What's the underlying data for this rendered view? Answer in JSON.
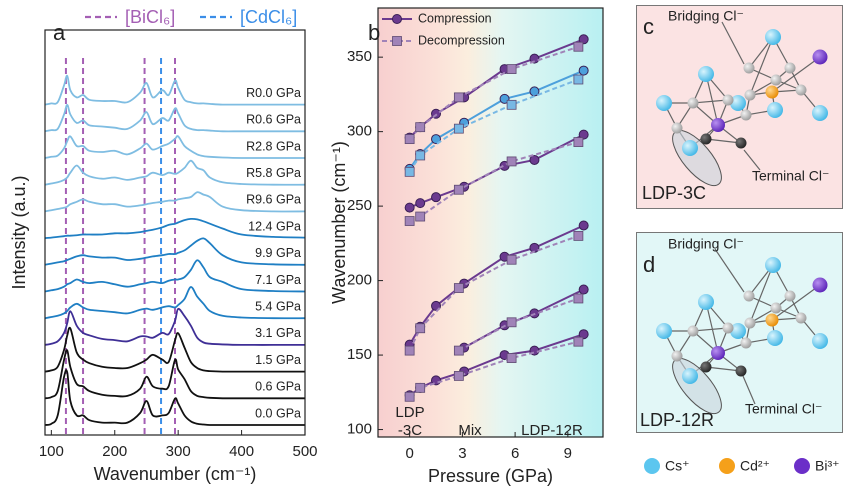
{
  "chart_data": [
    {
      "type": "waterfall",
      "panel": "a",
      "xlabel": "Wavenumber (cm⁻¹)",
      "ylabel": "Intensity (a.u.)",
      "xlim": [
        90,
        500
      ],
      "xticks": [
        100,
        200,
        300,
        400,
        500
      ],
      "reference_lines": [
        {
          "name": "[BiCl₆]",
          "color": "#a45fb4",
          "positions": [
            123,
            150,
            247,
            295
          ]
        },
        {
          "name": "[CdCl₆]",
          "color": "#3b8ee8",
          "positions": [
            273
          ]
        }
      ],
      "x": [
        90,
        100,
        110,
        120,
        125,
        130,
        140,
        150,
        160,
        180,
        200,
        220,
        240,
        250,
        260,
        275,
        285,
        295,
        300,
        310,
        320,
        330,
        340,
        350,
        370,
        400,
        450,
        500
      ],
      "series": [
        {
          "name": "R0.0 GPa",
          "color": "#7fbde2",
          "values": [
            0,
            0.05,
            0.1,
            0.8,
            1.2,
            0.6,
            0.3,
            0.4,
            0.2,
            0.15,
            0.15,
            0.1,
            0.5,
            0.9,
            0.3,
            0.6,
            0.4,
            1.0,
            0.7,
            0.2,
            0.1,
            0.05,
            0.05,
            0.03,
            0,
            0,
            0,
            0
          ]
        },
        {
          "name": "R0.6 GPa",
          "color": "#7fbde2",
          "values": [
            0,
            0.05,
            0.1,
            0.7,
            1.1,
            0.7,
            0.35,
            0.45,
            0.25,
            0.2,
            0.15,
            0.1,
            0.45,
            0.8,
            0.3,
            0.55,
            0.45,
            0.95,
            0.75,
            0.25,
            0.1,
            0.05,
            0.05,
            0.03,
            0,
            0,
            0,
            0
          ]
        },
        {
          "name": "R2.8 GPa",
          "color": "#7fbde2",
          "values": [
            0,
            0.05,
            0.1,
            0.4,
            0.7,
            0.9,
            0.5,
            0.5,
            0.3,
            0.25,
            0.3,
            0.15,
            0.4,
            0.6,
            0.35,
            0.5,
            0.6,
            0.8,
            0.9,
            0.5,
            0.3,
            0.15,
            0.08,
            0.05,
            0.02,
            0,
            0,
            0
          ]
        },
        {
          "name": "R5.8 GPa",
          "color": "#7fbde2",
          "values": [
            0,
            0.05,
            0.1,
            0.2,
            0.3,
            0.5,
            0.8,
            0.5,
            0.35,
            0.25,
            0.3,
            0.2,
            0.3,
            0.35,
            0.5,
            0.4,
            0.5,
            0.45,
            0.5,
            0.7,
            1.0,
            0.7,
            0.6,
            0.3,
            0.1,
            0.03,
            0,
            0
          ]
        },
        {
          "name": "R9.6 GPa",
          "color": "#7fbde2",
          "values": [
            0,
            0.05,
            0.1,
            0.15,
            0.2,
            0.3,
            0.4,
            0.5,
            0.4,
            0.3,
            0.3,
            0.2,
            0.25,
            0.3,
            0.35,
            0.4,
            0.45,
            0.45,
            0.5,
            0.55,
            0.6,
            0.8,
            0.7,
            0.6,
            0.2,
            0.05,
            0,
            0
          ]
        },
        {
          "name": "12.4 GPa",
          "color": "#1f7fc4",
          "values": [
            0,
            0.02,
            0.05,
            0.08,
            0.1,
            0.1,
            0.12,
            0.15,
            0.15,
            0.15,
            0.2,
            0.2,
            0.25,
            0.3,
            0.35,
            0.45,
            0.55,
            0.6,
            0.65,
            0.75,
            0.8,
            0.78,
            0.7,
            0.6,
            0.4,
            0.15,
            0.05,
            0.02
          ]
        },
        {
          "name": "9.9 GPa",
          "color": "#1f7fc4",
          "values": [
            0,
            0.05,
            0.1,
            0.15,
            0.2,
            0.25,
            0.35,
            0.4,
            0.35,
            0.3,
            0.3,
            0.2,
            0.25,
            0.3,
            0.35,
            0.4,
            0.45,
            0.45,
            0.5,
            0.6,
            0.8,
            1.0,
            1.1,
            0.9,
            0.4,
            0.1,
            0.02,
            0
          ]
        },
        {
          "name": "7.1 GPa",
          "color": "#1f7fc4",
          "values": [
            0,
            0.05,
            0.1,
            0.2,
            0.3,
            0.35,
            0.5,
            0.4,
            0.35,
            0.4,
            0.3,
            0.2,
            0.3,
            0.35,
            0.4,
            0.35,
            0.45,
            0.5,
            0.5,
            0.6,
            0.9,
            1.3,
            1.0,
            0.6,
            0.4,
            0.1,
            0.02,
            0
          ]
        },
        {
          "name": "5.4 GPa",
          "color": "#1f7fc4",
          "values": [
            0,
            0.05,
            0.1,
            0.2,
            0.3,
            0.45,
            0.6,
            0.45,
            0.35,
            0.3,
            0.25,
            0.2,
            0.35,
            0.4,
            0.35,
            0.45,
            0.5,
            0.45,
            0.55,
            0.8,
            1.3,
            0.9,
            0.6,
            0.3,
            0.1,
            0.03,
            0,
            0
          ]
        },
        {
          "name": "3.1 GPa",
          "color": "#3f2f96",
          "values": [
            0,
            0.05,
            0.15,
            0.5,
            0.9,
            1.4,
            0.8,
            0.5,
            0.4,
            0.25,
            0.2,
            0.15,
            0.35,
            0.35,
            0.3,
            0.5,
            0.45,
            1.0,
            1.5,
            1.2,
            0.8,
            0.3,
            0.1,
            0.05,
            0.02,
            0,
            0,
            0
          ]
        },
        {
          "name": "1.5 GPa",
          "color": "#111111",
          "values": [
            0,
            0.05,
            0.2,
            0.9,
            1.5,
            1.8,
            0.8,
            0.5,
            0.35,
            0.2,
            0.15,
            0.15,
            0.35,
            0.5,
            0.7,
            0.5,
            0.4,
            1.3,
            1.6,
            1.0,
            0.4,
            0.15,
            0.05,
            0.02,
            0,
            0,
            0,
            0
          ]
        },
        {
          "name": "0.6 GPa",
          "color": "#111111",
          "values": [
            0,
            0.05,
            0.3,
            1.6,
            2.0,
            1.3,
            0.6,
            0.5,
            0.3,
            0.15,
            0.1,
            0.1,
            0.4,
            0.9,
            0.5,
            0.4,
            0.5,
            1.6,
            1.2,
            0.8,
            0.3,
            0.1,
            0.05,
            0.02,
            0,
            0,
            0,
            0
          ]
        },
        {
          "name": "0.0 GPa",
          "color": "#111111",
          "values": [
            0,
            0.05,
            0.4,
            2.0,
            2.2,
            1.0,
            0.4,
            0.4,
            0.2,
            0.1,
            0.1,
            0.1,
            0.5,
            1.0,
            0.4,
            0.4,
            0.5,
            1.1,
            0.9,
            0.4,
            0.15,
            0.05,
            0.02,
            0,
            0,
            0,
            0,
            0
          ]
        }
      ]
    },
    {
      "type": "line",
      "panel": "b",
      "xlabel": "Pressure (GPa)",
      "ylabel": "Wavenumber (cm⁻¹)",
      "xlim": [
        -1.8,
        11
      ],
      "xticks": [
        0,
        3,
        6,
        9
      ],
      "ylim": [
        95,
        383
      ],
      "yticks": [
        100,
        150,
        200,
        250,
        300,
        350
      ],
      "annotations": [
        "LDP",
        "-3C",
        "Mix",
        "LDP-12R"
      ],
      "series": [
        {
          "name": "Compression",
          "color": "#6b3a8f",
          "marker": "circle",
          "dashed": false,
          "x": [
            0,
            0.6,
            1.5,
            3.1,
            5.4,
            7.1,
            9.9
          ],
          "lines": [
            {
              "color": "#6b3a8f",
              "values": [
                296,
                303,
                312,
                323,
                342,
                349,
                362
              ]
            },
            {
              "color": "#4da0dc",
              "values": [
                275,
                285,
                295,
                306,
                322,
                327,
                341
              ]
            },
            {
              "color": "#6b3a8f",
              "values": [
                249,
                252,
                256,
                263,
                277,
                281,
                298
              ]
            },
            {
              "color": "#6b3a8f",
              "values": [
                157,
                169,
                183,
                198,
                216,
                222,
                237
              ]
            },
            {
              "color": "#6b3a8f",
              "values": [
                null,
                null,
                null,
                155,
                170,
                178,
                194
              ]
            },
            {
              "color": "#6b3a8f",
              "values": [
                123,
                128,
                133,
                139,
                150,
                153,
                164
              ]
            }
          ]
        },
        {
          "name": "Decompression",
          "color": "#a083b8",
          "marker": "square",
          "dashed": true,
          "x": [
            0,
            0.6,
            2.8,
            5.8,
            9.6
          ],
          "lines": [
            {
              "color": "#a083b8",
              "values": [
                295,
                303,
                323,
                342,
                357
              ]
            },
            {
              "color": "#78b8e4",
              "values": [
                273,
                284,
                302,
                318,
                335
              ]
            },
            {
              "color": "#a083b8",
              "values": [
                240,
                243,
                261,
                280,
                293
              ]
            },
            {
              "color": "#a083b8",
              "values": [
                153,
                168,
                195,
                214,
                230
              ]
            },
            {
              "color": "#a083b8",
              "values": [
                null,
                null,
                153,
                172,
                188
              ]
            },
            {
              "color": "#a083b8",
              "values": [
                122,
                128,
                136,
                148,
                159
              ]
            }
          ]
        }
      ]
    }
  ],
  "panels": [
    {
      "letter": "c",
      "bridging": "Bridging Cl⁻",
      "terminal": "Terminal Cl⁻",
      "phase": "LDP-3C"
    },
    {
      "letter": "d",
      "bridging": "Bridging Cl⁻",
      "terminal": "Terminal Cl⁻",
      "phase": "LDP-12R"
    }
  ],
  "ion_legend": [
    {
      "label": "Cs⁺",
      "color": "#5cc6ef"
    },
    {
      "label": "Cd²⁺",
      "color": "#f5a01a"
    },
    {
      "label": "Bi³⁺",
      "color": "#6b2fc8"
    }
  ]
}
